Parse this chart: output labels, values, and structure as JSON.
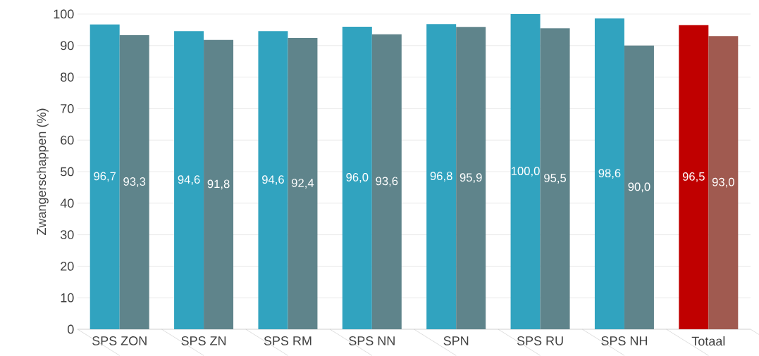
{
  "chart_data": {
    "type": "bar",
    "ylabel": "Zwangerschappen (%)",
    "categories": [
      "SPS ZON",
      "SPS ZN",
      "SPS RM",
      "SPS NN",
      "SPN",
      "SPS RU",
      "SPS NH",
      "Totaal"
    ],
    "series": [
      {
        "colors": [
          "#31a3bf",
          "#31a3bf",
          "#31a3bf",
          "#31a3bf",
          "#31a3bf",
          "#31a3bf",
          "#31a3bf",
          "#c00000"
        ],
        "values": [
          96.7,
          94.6,
          94.6,
          96.0,
          96.8,
          100.0,
          98.6,
          96.5
        ],
        "value_labels": [
          "96,7",
          "94,6",
          "94,6",
          "96,0",
          "96,8",
          "100,0",
          "98,6",
          "96,5"
        ]
      },
      {
        "colors": [
          "#5f848b",
          "#5f848b",
          "#5f848b",
          "#5f848b",
          "#5f848b",
          "#5f848b",
          "#5f848b",
          "#a05a50"
        ],
        "values": [
          93.3,
          91.8,
          92.4,
          93.6,
          95.9,
          95.5,
          90.0,
          93.0
        ],
        "value_labels": [
          "93,3",
          "91,8",
          "92,4",
          "93,6",
          "95,9",
          "95,5",
          "90,0",
          "93,0"
        ]
      }
    ],
    "ylim": [
      0,
      100
    ],
    "yticks": [
      0,
      10,
      20,
      30,
      40,
      50,
      60,
      70,
      80,
      90,
      100
    ],
    "grid": "y"
  }
}
